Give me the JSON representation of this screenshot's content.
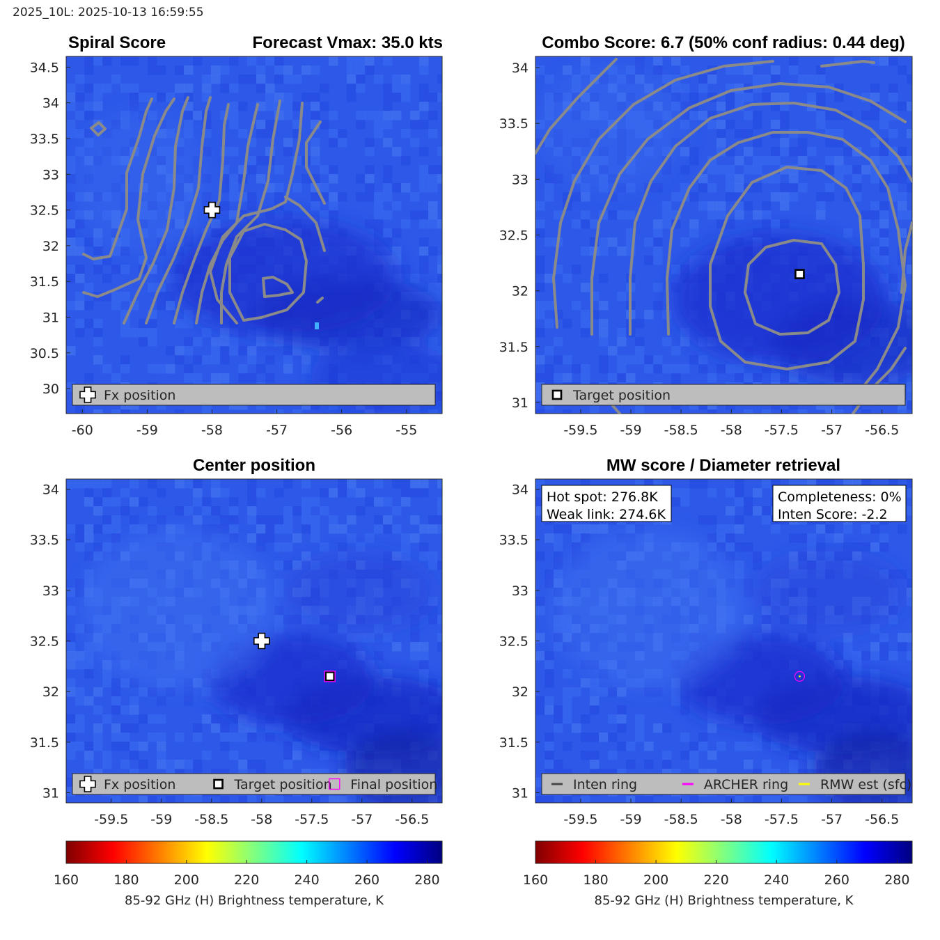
{
  "figure": {
    "suptitle": "2025_10L: 2025-10-13 16:59:55",
    "colors": {
      "contour": "#8a8a8a",
      "legend_bg": "#bdbdbd",
      "archer": "#ff00ff",
      "rmw": "#ffff00",
      "inten": "#444444"
    }
  },
  "chart_data": [
    {
      "id": "spiral",
      "type": "heatmap",
      "title_left": "Spiral Score",
      "title_right": "Forecast Vmax: 35.0 kts",
      "xlim": [
        -60.25,
        -54.45
      ],
      "ylim": [
        29.65,
        34.65
      ],
      "xticks": [
        "-60",
        "-59",
        "-58",
        "-57",
        "-56",
        "-55"
      ],
      "yticks": [
        "30",
        "30.5",
        "31",
        "31.5",
        "32",
        "32.5",
        "33",
        "33.5",
        "34",
        "34.5"
      ],
      "markers": [
        {
          "kind": "fx",
          "x": -58.0,
          "y": 32.5
        }
      ],
      "legend": [
        {
          "icon": "fx",
          "label": "Fx position"
        }
      ]
    },
    {
      "id": "combo",
      "type": "heatmap",
      "title": "Combo Score: 6.7  (50% conf radius: 0.44 deg)",
      "xlim": [
        -59.95,
        -56.2
      ],
      "ylim": [
        30.9,
        34.1
      ],
      "xticks": [
        "-59.5",
        "-59",
        "-58.5",
        "-58",
        "-57.5",
        "-57",
        "-56.5"
      ],
      "yticks": [
        "31",
        "31.5",
        "32",
        "32.5",
        "33",
        "33.5",
        "34"
      ],
      "markers": [
        {
          "kind": "target",
          "x": -57.32,
          "y": 32.15
        }
      ],
      "legend": [
        {
          "icon": "target",
          "label": "Target position"
        }
      ]
    },
    {
      "id": "center",
      "type": "heatmap",
      "title": "Center position",
      "xlim": [
        -59.95,
        -56.2
      ],
      "ylim": [
        30.9,
        34.1
      ],
      "xticks": [
        "-59.5",
        "-59",
        "-58.5",
        "-58",
        "-57.5",
        "-57",
        "-56.5"
      ],
      "yticks": [
        "31",
        "31.5",
        "32",
        "32.5",
        "33",
        "33.5",
        "34"
      ],
      "markers": [
        {
          "kind": "fx",
          "x": -58.0,
          "y": 32.5
        },
        {
          "kind": "target",
          "x": -57.32,
          "y": 32.15
        },
        {
          "kind": "final",
          "x": -57.32,
          "y": 32.15
        }
      ],
      "legend": [
        {
          "icon": "fx",
          "label": "Fx position"
        },
        {
          "icon": "target",
          "label": "Target position"
        },
        {
          "icon": "final",
          "label": "Final position"
        }
      ]
    },
    {
      "id": "mw",
      "type": "heatmap",
      "title": "MW score / Diameter retrieval",
      "xlim": [
        -59.95,
        -56.2
      ],
      "ylim": [
        30.9,
        34.1
      ],
      "xticks": [
        "-59.5",
        "-59",
        "-58.5",
        "-58",
        "-57.5",
        "-57",
        "-56.5"
      ],
      "yticks": [
        "31",
        "31.5",
        "32",
        "32.5",
        "33",
        "33.5",
        "34"
      ],
      "markers": [
        {
          "kind": "archer",
          "x": -57.32,
          "y": 32.15
        }
      ],
      "textbox_left": [
        "Hot spot: 276.8K",
        "Weak link: 274.6K"
      ],
      "textbox_right": [
        "Completeness: 0%",
        "Inten Score: -2.2"
      ],
      "legend": [
        {
          "icon": "inten",
          "label": "Inten ring"
        },
        {
          "icon": "archer",
          "label": "ARCHER ring"
        },
        {
          "icon": "rmw",
          "label": "RMW est (sfc)"
        }
      ]
    }
  ],
  "colorbars": [
    {
      "id": "cb-left",
      "range": [
        160,
        285
      ],
      "ticks": [
        "160",
        "180",
        "200",
        "220",
        "240",
        "260",
        "280"
      ],
      "label": "85-92 GHz (H) Brightness temperature, K"
    },
    {
      "id": "cb-right",
      "range": [
        160,
        285
      ],
      "ticks": [
        "160",
        "180",
        "200",
        "220",
        "240",
        "260",
        "280"
      ],
      "label": "85-92 GHz (H) Brightness temperature, K"
    }
  ]
}
